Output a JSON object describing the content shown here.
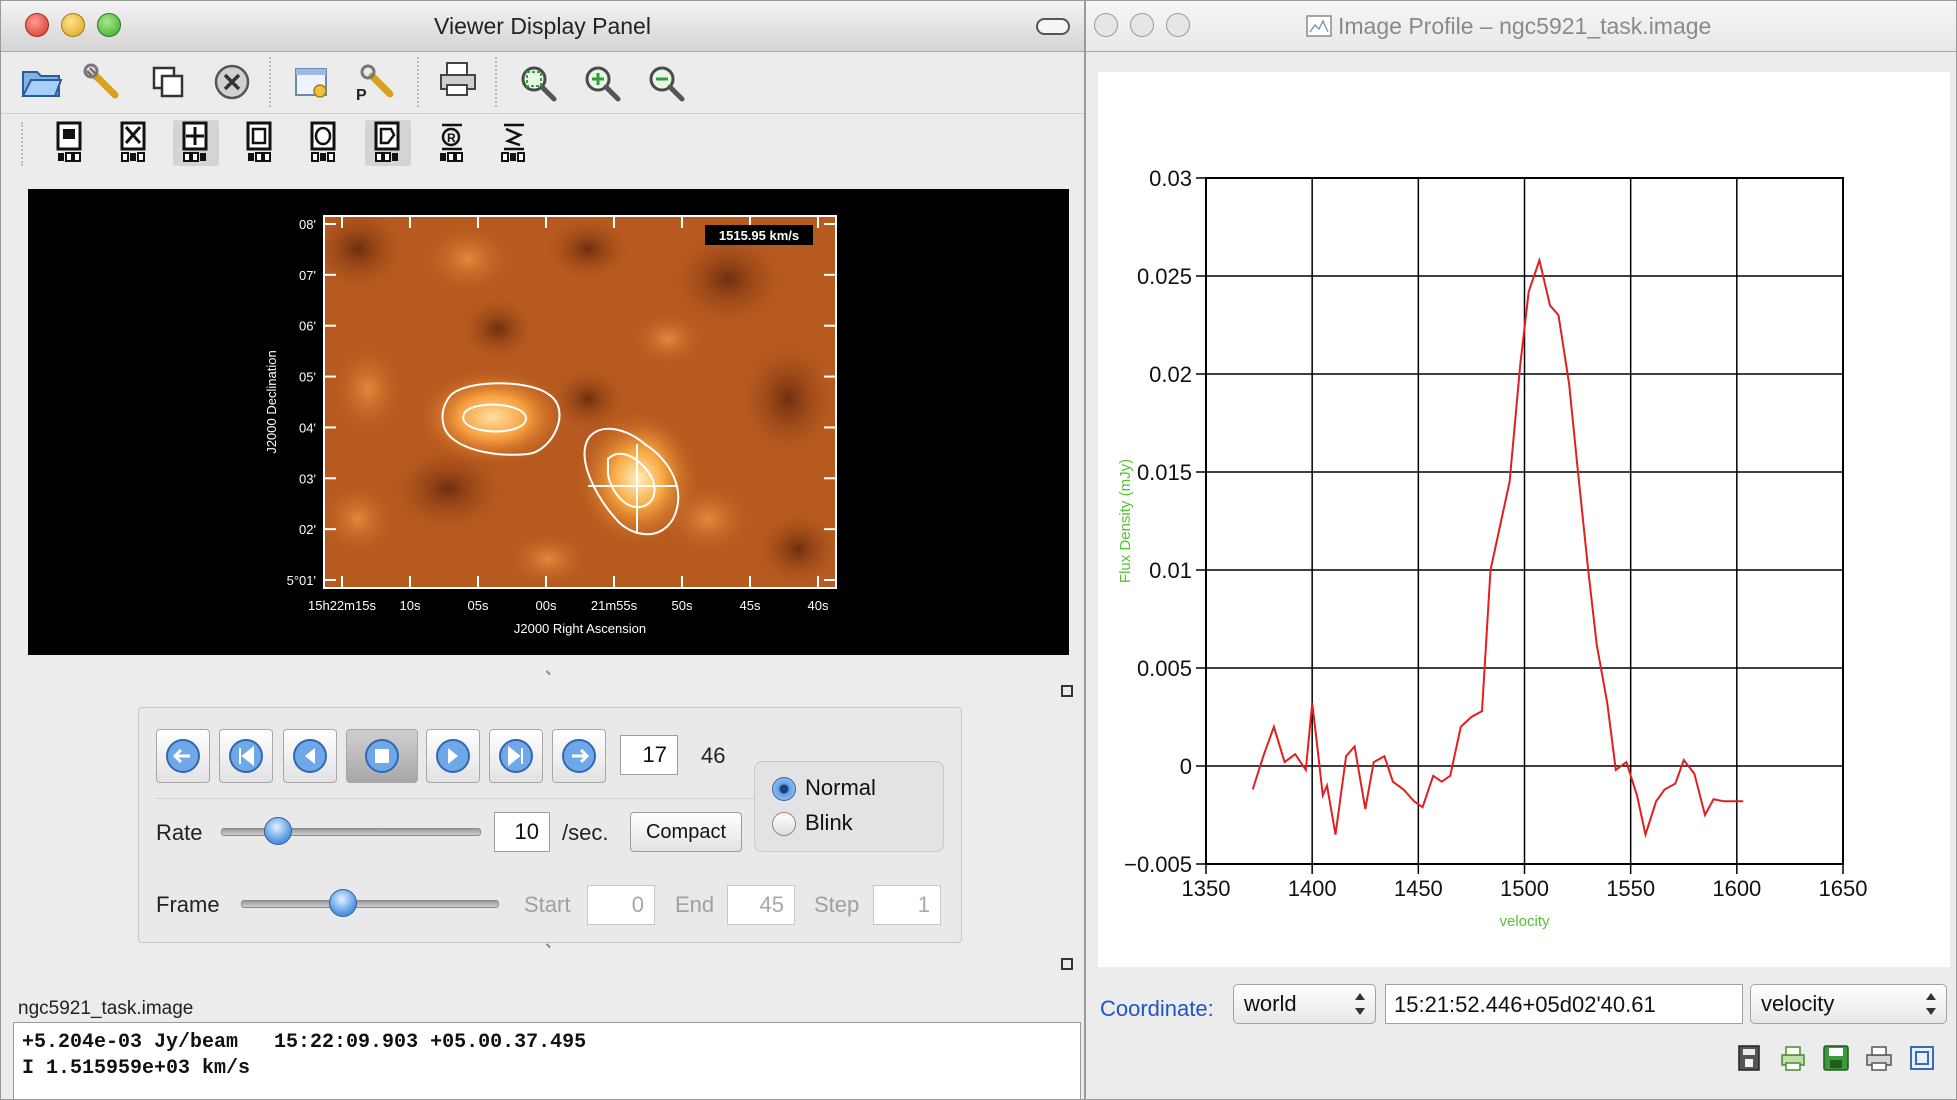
{
  "viewer": {
    "title": "Viewer Display Panel",
    "toolbar_icons": [
      "open-folder-icon",
      "wrench-icon",
      "copy-panel-icon",
      "close-panel-icon",
      "panel-settings-icon",
      "wrench-p-icon",
      "print-icon",
      "zoom-fit-icon",
      "zoom-in-icon",
      "zoom-out-icon"
    ],
    "mouse_tools": [
      "zoom-tool-icon",
      "pan-tool-icon",
      "colormap-tool-icon",
      "rectangle-region-icon",
      "ellipse-region-icon",
      "polygon-region-icon",
      "position-tool-icon",
      "polyline-tool-icon"
    ],
    "image": {
      "velocity_label": "1515.95 km/s",
      "ylabel": "J2000 Declination",
      "xlabel": "J2000 Right Ascension",
      "yticks": [
        "08'",
        "07'",
        "06'",
        "05'",
        "04'",
        "03'",
        "02'",
        "5°01'"
      ],
      "xticks": [
        "15h22m15s",
        "10s",
        "05s",
        "00s",
        "21m55s",
        "50s",
        "45s",
        "40s"
      ]
    },
    "animator": {
      "frame_current": "17",
      "frame_total": "46",
      "rate_label": "Rate",
      "rate_value": "10",
      "rate_unit": "/sec.",
      "compact_label": "Compact",
      "mode_normal": "Normal",
      "mode_blink": "Blink",
      "frame_label": "Frame",
      "start_label": "Start",
      "start_value": "0",
      "end_label": "End",
      "end_value": "45",
      "step_label": "Step",
      "step_value": "1",
      "rate_slider_fraction": 0.22,
      "frame_slider_fraction": 0.4
    },
    "status": {
      "filename": "ngc5921_task.image",
      "line1": "+5.204e-03 Jy/beam   15:22:09.903 +05.00.37.495",
      "line2": "I 1.515959e+03 km/s"
    }
  },
  "profile": {
    "title": "Image Profile – ngc5921_task.image",
    "coordinate_label": "Coordinate:",
    "coord_system": "world",
    "coord_value": "15:21:52.446+05d02'40.61",
    "axis_type": "velocity",
    "bottom_icons": [
      "export-icon",
      "print-preview-icon",
      "save-icon",
      "print-icon",
      "restore-icon"
    ]
  },
  "chart_data": {
    "type": "line",
    "xlabel": "velocity",
    "ylabel": "Flux Density (mJy)",
    "xlim": [
      1350,
      1650
    ],
    "ylim": [
      -0.005,
      0.03
    ],
    "xticks": [
      "1350",
      "1400",
      "1450",
      "1500",
      "1550",
      "1600",
      "1650"
    ],
    "yticks": [
      "-0.005",
      "0",
      "0.005",
      "0.01",
      "0.015",
      "0.02",
      "0.025",
      "0.03"
    ],
    "grid": true,
    "series": [
      {
        "color": "#e02020",
        "x": [
          1372,
          1377,
          1382,
          1387,
          1392,
          1397,
          1400,
          1402,
          1405,
          1407,
          1411,
          1416,
          1420,
          1425,
          1429,
          1434,
          1438,
          1443,
          1448,
          1452,
          1457,
          1461,
          1465,
          1470,
          1475,
          1480,
          1484,
          1489,
          1493,
          1498,
          1502,
          1507,
          1512,
          1516,
          1521,
          1525,
          1530,
          1534,
          1539,
          1543,
          1548,
          1553,
          1557,
          1562,
          1566,
          1571,
          1575,
          1580,
          1585,
          1589,
          1594,
          1598,
          1603
        ],
        "y": [
          -0.0012,
          0.0005,
          0.002,
          0.0002,
          0.0006,
          -0.0002,
          0.0032,
          0.0014,
          -0.0015,
          -0.001,
          -0.0035,
          0.0005,
          0.001,
          -0.0022,
          0.0002,
          0.0005,
          -0.0008,
          -0.0012,
          -0.0018,
          -0.0021,
          -0.0005,
          -0.0008,
          -0.0005,
          0.002,
          0.0025,
          0.0028,
          0.01,
          0.0125,
          0.0145,
          0.0205,
          0.0242,
          0.0258,
          0.0235,
          0.023,
          0.0195,
          0.0152,
          0.01,
          0.0062,
          0.0032,
          -0.0002,
          0.0002,
          -0.0015,
          -0.0035,
          -0.0018,
          -0.0012,
          -0.0009,
          0.0003,
          -0.0004,
          -0.0025,
          -0.0017,
          -0.0018,
          -0.0018,
          -0.0018
        ]
      }
    ]
  }
}
